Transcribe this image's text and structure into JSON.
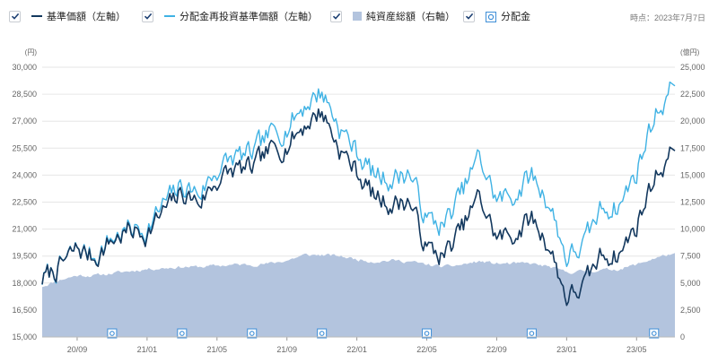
{
  "legend": {
    "items": [
      {
        "label": "基準価額（左軸）",
        "color": "#13385e",
        "checked": true
      },
      {
        "label": "分配金再投資基準価額（左軸）",
        "color": "#3fb2e4",
        "checked": true
      },
      {
        "label": "純資産総額（右軸）",
        "color": "#b3c4de",
        "checked": true
      },
      {
        "label": "分配金",
        "color": "#3f8fd8",
        "checked": true
      }
    ]
  },
  "as_of": "時点：2023年7月7日",
  "chart_data": {
    "type": "line",
    "x_ticks": [
      "20/09",
      "21/01",
      "21/05",
      "21/09",
      "22/01",
      "22/05",
      "22/09",
      "23/01",
      "23/05"
    ],
    "x_range": [
      "2020-07",
      "2023-07-07"
    ],
    "y_left": {
      "unit": "(円)",
      "min": 15000,
      "max": 30000,
      "ticks": [
        "30,000",
        "28,500",
        "27,000",
        "25,500",
        "24,000",
        "22,500",
        "21,000",
        "19,500",
        "18,000",
        "16,500",
        "15,000"
      ]
    },
    "y_right": {
      "unit": "(億円)",
      "min": 0,
      "max": 25000,
      "ticks": [
        "25,000",
        "22,500",
        "20,000",
        "17,500",
        "15,000",
        "12,500",
        "10,000",
        "7,500",
        "5,000",
        "2,500",
        "0"
      ]
    },
    "grid": true,
    "series": [
      {
        "name": "基準価額（左軸）",
        "axis": "left",
        "kind": "line",
        "color": "#13385e",
        "x": [
          "2020-07",
          "2020-08",
          "2020-09",
          "2020-10",
          "2020-11",
          "2020-12",
          "2021-01",
          "2021-02",
          "2021-03",
          "2021-04",
          "2021-05",
          "2021-06",
          "2021-07",
          "2021-08",
          "2021-09",
          "2021-10",
          "2021-11",
          "2021-12",
          "2022-01",
          "2022-02",
          "2022-03",
          "2022-04",
          "2022-05",
          "2022-06",
          "2022-07",
          "2022-08",
          "2022-09",
          "2022-10",
          "2022-11",
          "2022-12",
          "2023-01",
          "2023-02",
          "2023-03",
          "2023-04",
          "2023-05",
          "2023-06",
          "2023-07"
        ],
        "values": [
          18200,
          18900,
          19900,
          19400,
          20400,
          20900,
          20800,
          22000,
          23000,
          22500,
          23700,
          24300,
          24300,
          25300,
          25700,
          26800,
          27600,
          25500,
          24200,
          22800,
          22400,
          22600,
          19900,
          19500,
          21000,
          22800,
          20500,
          20700,
          21600,
          20100,
          17200,
          17800,
          19600,
          19600,
          21200,
          23900,
          25200
        ]
      },
      {
        "name": "分配金再投資基準価額（左軸）",
        "axis": "left",
        "kind": "line",
        "color": "#3fb2e4",
        "x": [
          "2020-07",
          "2020-08",
          "2020-09",
          "2020-10",
          "2020-11",
          "2020-12",
          "2021-01",
          "2021-02",
          "2021-03",
          "2021-04",
          "2021-05",
          "2021-06",
          "2021-07",
          "2021-08",
          "2021-09",
          "2021-10",
          "2021-11",
          "2021-12",
          "2022-01",
          "2022-02",
          "2022-03",
          "2022-04",
          "2022-05",
          "2022-06",
          "2022-07",
          "2022-08",
          "2022-09",
          "2022-10",
          "2022-11",
          "2022-12",
          "2023-01",
          "2023-02",
          "2023-03",
          "2023-04",
          "2023-05",
          "2023-06",
          "2023-07"
        ],
        "values": [
          18200,
          18900,
          19900,
          19500,
          20500,
          21000,
          21000,
          22400,
          23400,
          23000,
          24300,
          25000,
          25100,
          26200,
          26700,
          27900,
          28700,
          26700,
          25300,
          24000,
          23800,
          24200,
          21500,
          21200,
          23000,
          25000,
          22600,
          22900,
          24000,
          22500,
          19400,
          20100,
          22200,
          22300,
          24200,
          27300,
          28800
        ]
      },
      {
        "name": "純資産総額（右軸）",
        "axis": "right",
        "kind": "area",
        "color": "#b3c4de",
        "x": [
          "2020-07",
          "2020-08",
          "2020-09",
          "2020-10",
          "2020-11",
          "2020-12",
          "2021-01",
          "2021-02",
          "2021-03",
          "2021-04",
          "2021-05",
          "2021-06",
          "2021-07",
          "2021-08",
          "2021-09",
          "2021-10",
          "2021-11",
          "2021-12",
          "2022-01",
          "2022-02",
          "2022-03",
          "2022-04",
          "2022-05",
          "2022-06",
          "2022-07",
          "2022-08",
          "2022-09",
          "2022-10",
          "2022-11",
          "2022-12",
          "2023-01",
          "2023-02",
          "2023-03",
          "2023-04",
          "2023-05",
          "2023-06",
          "2023-07"
        ],
        "values": [
          4700,
          5300,
          5700,
          5700,
          5900,
          6100,
          6300,
          6400,
          6500,
          6500,
          6600,
          6700,
          6700,
          6800,
          7100,
          7600,
          7600,
          7500,
          7200,
          7000,
          7100,
          7000,
          6700,
          6500,
          6700,
          7000,
          6800,
          6800,
          6800,
          6500,
          6000,
          6100,
          6200,
          6300,
          6700,
          7300,
          7700
        ]
      }
    ],
    "distributions": {
      "name": "分配金",
      "x": [
        "2020-11",
        "2021-03",
        "2021-07",
        "2021-11",
        "2022-05",
        "2022-11",
        "2023-06"
      ]
    }
  }
}
